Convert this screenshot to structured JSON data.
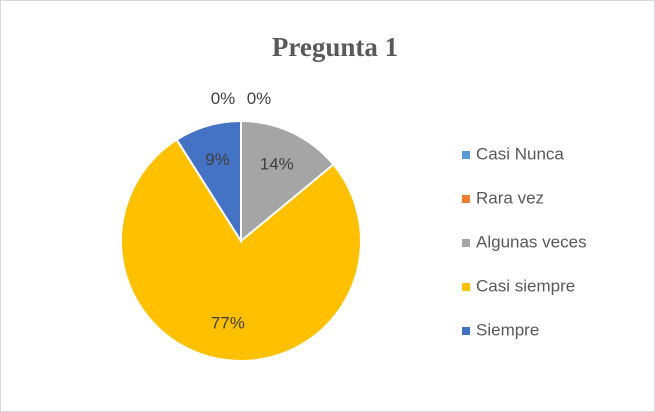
{
  "chart_data": {
    "type": "pie",
    "title": "Pregunta 1",
    "categories": [
      "Casi Nunca",
      "Rara vez",
      "Algunas veces",
      "Casi siempre",
      "Siempre"
    ],
    "values": [
      0,
      0,
      14,
      77,
      9
    ],
    "value_labels": [
      "0%",
      "0%",
      "14%",
      "77%",
      "9%"
    ],
    "colors": [
      "#5b9bd5",
      "#ed7d31",
      "#a5a5a5",
      "#ffc000",
      "#4472c4"
    ],
    "legend": "right"
  }
}
